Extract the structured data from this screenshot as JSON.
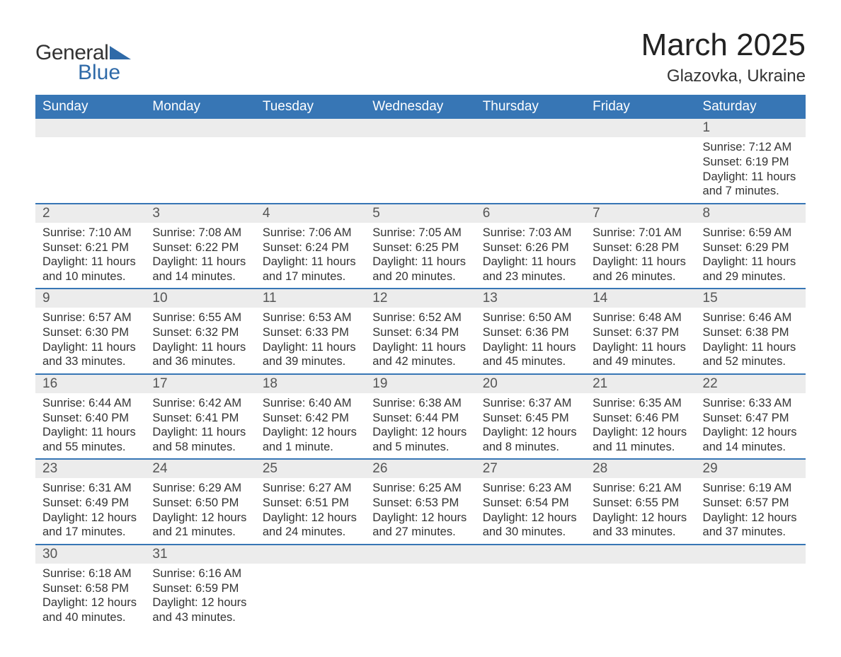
{
  "logo": {
    "general": "General",
    "blue": "Blue"
  },
  "title": "March 2025",
  "location": "Glazovka, Ukraine",
  "colors": {
    "header_bg": "#3776b5",
    "header_text": "#ffffff",
    "daynum_bg": "#ececec",
    "row_border": "#3776b5",
    "text": "#333333",
    "logo_blue": "#2f6aa8"
  },
  "weekdays": [
    "Sunday",
    "Monday",
    "Tuesday",
    "Wednesday",
    "Thursday",
    "Friday",
    "Saturday"
  ],
  "weeks": [
    [
      {
        "empty": true
      },
      {
        "empty": true
      },
      {
        "empty": true
      },
      {
        "empty": true
      },
      {
        "empty": true
      },
      {
        "empty": true
      },
      {
        "num": "1",
        "sunrise": "Sunrise: 7:12 AM",
        "sunset": "Sunset: 6:19 PM",
        "daylight1": "Daylight: 11 hours",
        "daylight2": "and 7 minutes."
      }
    ],
    [
      {
        "num": "2",
        "sunrise": "Sunrise: 7:10 AM",
        "sunset": "Sunset: 6:21 PM",
        "daylight1": "Daylight: 11 hours",
        "daylight2": "and 10 minutes."
      },
      {
        "num": "3",
        "sunrise": "Sunrise: 7:08 AM",
        "sunset": "Sunset: 6:22 PM",
        "daylight1": "Daylight: 11 hours",
        "daylight2": "and 14 minutes."
      },
      {
        "num": "4",
        "sunrise": "Sunrise: 7:06 AM",
        "sunset": "Sunset: 6:24 PM",
        "daylight1": "Daylight: 11 hours",
        "daylight2": "and 17 minutes."
      },
      {
        "num": "5",
        "sunrise": "Sunrise: 7:05 AM",
        "sunset": "Sunset: 6:25 PM",
        "daylight1": "Daylight: 11 hours",
        "daylight2": "and 20 minutes."
      },
      {
        "num": "6",
        "sunrise": "Sunrise: 7:03 AM",
        "sunset": "Sunset: 6:26 PM",
        "daylight1": "Daylight: 11 hours",
        "daylight2": "and 23 minutes."
      },
      {
        "num": "7",
        "sunrise": "Sunrise: 7:01 AM",
        "sunset": "Sunset: 6:28 PM",
        "daylight1": "Daylight: 11 hours",
        "daylight2": "and 26 minutes."
      },
      {
        "num": "8",
        "sunrise": "Sunrise: 6:59 AM",
        "sunset": "Sunset: 6:29 PM",
        "daylight1": "Daylight: 11 hours",
        "daylight2": "and 29 minutes."
      }
    ],
    [
      {
        "num": "9",
        "sunrise": "Sunrise: 6:57 AM",
        "sunset": "Sunset: 6:30 PM",
        "daylight1": "Daylight: 11 hours",
        "daylight2": "and 33 minutes."
      },
      {
        "num": "10",
        "sunrise": "Sunrise: 6:55 AM",
        "sunset": "Sunset: 6:32 PM",
        "daylight1": "Daylight: 11 hours",
        "daylight2": "and 36 minutes."
      },
      {
        "num": "11",
        "sunrise": "Sunrise: 6:53 AM",
        "sunset": "Sunset: 6:33 PM",
        "daylight1": "Daylight: 11 hours",
        "daylight2": "and 39 minutes."
      },
      {
        "num": "12",
        "sunrise": "Sunrise: 6:52 AM",
        "sunset": "Sunset: 6:34 PM",
        "daylight1": "Daylight: 11 hours",
        "daylight2": "and 42 minutes."
      },
      {
        "num": "13",
        "sunrise": "Sunrise: 6:50 AM",
        "sunset": "Sunset: 6:36 PM",
        "daylight1": "Daylight: 11 hours",
        "daylight2": "and 45 minutes."
      },
      {
        "num": "14",
        "sunrise": "Sunrise: 6:48 AM",
        "sunset": "Sunset: 6:37 PM",
        "daylight1": "Daylight: 11 hours",
        "daylight2": "and 49 minutes."
      },
      {
        "num": "15",
        "sunrise": "Sunrise: 6:46 AM",
        "sunset": "Sunset: 6:38 PM",
        "daylight1": "Daylight: 11 hours",
        "daylight2": "and 52 minutes."
      }
    ],
    [
      {
        "num": "16",
        "sunrise": "Sunrise: 6:44 AM",
        "sunset": "Sunset: 6:40 PM",
        "daylight1": "Daylight: 11 hours",
        "daylight2": "and 55 minutes."
      },
      {
        "num": "17",
        "sunrise": "Sunrise: 6:42 AM",
        "sunset": "Sunset: 6:41 PM",
        "daylight1": "Daylight: 11 hours",
        "daylight2": "and 58 minutes."
      },
      {
        "num": "18",
        "sunrise": "Sunrise: 6:40 AM",
        "sunset": "Sunset: 6:42 PM",
        "daylight1": "Daylight: 12 hours",
        "daylight2": "and 1 minute."
      },
      {
        "num": "19",
        "sunrise": "Sunrise: 6:38 AM",
        "sunset": "Sunset: 6:44 PM",
        "daylight1": "Daylight: 12 hours",
        "daylight2": "and 5 minutes."
      },
      {
        "num": "20",
        "sunrise": "Sunrise: 6:37 AM",
        "sunset": "Sunset: 6:45 PM",
        "daylight1": "Daylight: 12 hours",
        "daylight2": "and 8 minutes."
      },
      {
        "num": "21",
        "sunrise": "Sunrise: 6:35 AM",
        "sunset": "Sunset: 6:46 PM",
        "daylight1": "Daylight: 12 hours",
        "daylight2": "and 11 minutes."
      },
      {
        "num": "22",
        "sunrise": "Sunrise: 6:33 AM",
        "sunset": "Sunset: 6:47 PM",
        "daylight1": "Daylight: 12 hours",
        "daylight2": "and 14 minutes."
      }
    ],
    [
      {
        "num": "23",
        "sunrise": "Sunrise: 6:31 AM",
        "sunset": "Sunset: 6:49 PM",
        "daylight1": "Daylight: 12 hours",
        "daylight2": "and 17 minutes."
      },
      {
        "num": "24",
        "sunrise": "Sunrise: 6:29 AM",
        "sunset": "Sunset: 6:50 PM",
        "daylight1": "Daylight: 12 hours",
        "daylight2": "and 21 minutes."
      },
      {
        "num": "25",
        "sunrise": "Sunrise: 6:27 AM",
        "sunset": "Sunset: 6:51 PM",
        "daylight1": "Daylight: 12 hours",
        "daylight2": "and 24 minutes."
      },
      {
        "num": "26",
        "sunrise": "Sunrise: 6:25 AM",
        "sunset": "Sunset: 6:53 PM",
        "daylight1": "Daylight: 12 hours",
        "daylight2": "and 27 minutes."
      },
      {
        "num": "27",
        "sunrise": "Sunrise: 6:23 AM",
        "sunset": "Sunset: 6:54 PM",
        "daylight1": "Daylight: 12 hours",
        "daylight2": "and 30 minutes."
      },
      {
        "num": "28",
        "sunrise": "Sunrise: 6:21 AM",
        "sunset": "Sunset: 6:55 PM",
        "daylight1": "Daylight: 12 hours",
        "daylight2": "and 33 minutes."
      },
      {
        "num": "29",
        "sunrise": "Sunrise: 6:19 AM",
        "sunset": "Sunset: 6:57 PM",
        "daylight1": "Daylight: 12 hours",
        "daylight2": "and 37 minutes."
      }
    ],
    [
      {
        "num": "30",
        "sunrise": "Sunrise: 6:18 AM",
        "sunset": "Sunset: 6:58 PM",
        "daylight1": "Daylight: 12 hours",
        "daylight2": "and 40 minutes."
      },
      {
        "num": "31",
        "sunrise": "Sunrise: 6:16 AM",
        "sunset": "Sunset: 6:59 PM",
        "daylight1": "Daylight: 12 hours",
        "daylight2": "and 43 minutes."
      },
      {
        "empty": true
      },
      {
        "empty": true
      },
      {
        "empty": true
      },
      {
        "empty": true
      },
      {
        "empty": true
      }
    ]
  ]
}
